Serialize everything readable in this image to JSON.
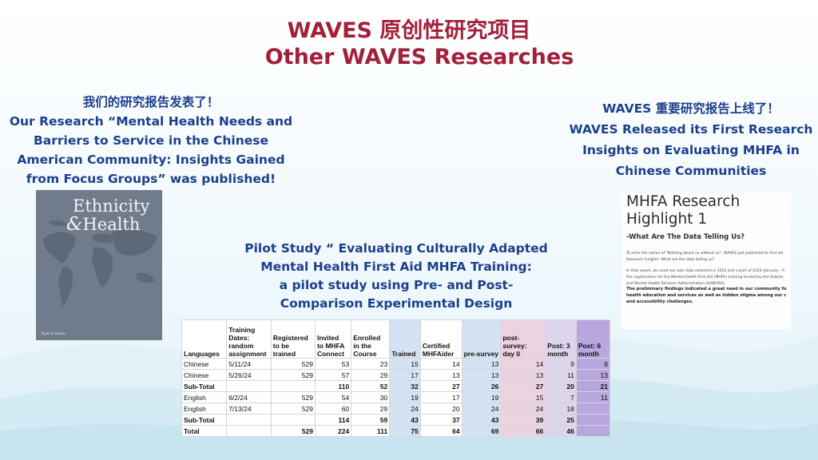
{
  "header": {
    "title_line1": "WAVES 原创性研究项目",
    "title_line2": "Other WAVES  Researches"
  },
  "left": {
    "lines": [
      "我们的研究报告发表了！",
      "Our Research “Mental Health Needs and",
      "Barriers to Service in the Chinese",
      "American Community: Insights Gained",
      "from Focus Groups” was published!"
    ],
    "journal": {
      "title_line1": "Ethnicity",
      "amp": "&",
      "title_line2": "Health",
      "publisher": "Taylor & Francis"
    }
  },
  "right": {
    "lines": [
      "WAVES 重要研究报告上线了！",
      "WAVES Released its First Research",
      "Insights on Evaluating MHFA in",
      "Chinese Communities"
    ],
    "highlight": {
      "title_line1": "MHFA Research",
      "title_line2": "Highlight 1",
      "subtitle": "-What Are The Data Telling Us?",
      "para1": [
        "To echo the notion of \"Nothing about us without us\", WAVES just published its first da",
        "Research Insights: What are the data telling us?"
      ],
      "para2": [
        "In that report, we used our own data collected in 2023 and a part of 2024 (January - A",
        "the registrations for the Mental Health First Aid (MHFA) training funded by the Substa",
        "and Mental Health Services Administration (SAMHSA)."
      ],
      "para3": [
        "The preliminary findings indicated a great need in our community fo",
        "health education and services as well as hidden stigma among our c",
        "and accessibility challenges."
      ]
    }
  },
  "middle": {
    "lines": [
      "Pilot Study “ Evaluating Culturally Adapted",
      "Mental Health First Aid MHFA Training:",
      "a pilot study using Pre- and Post-",
      "Comparison Experimental Design"
    ]
  },
  "table": {
    "headers": [
      [
        "Languages"
      ],
      [
        "Training",
        "Dates:",
        "random",
        "assignment"
      ],
      [
        "Registered",
        "to be",
        "trained"
      ],
      [
        "Invited",
        "to MHFA",
        "Connect"
      ],
      [
        "Enrolled",
        "in the",
        "Course"
      ],
      [
        "Trained"
      ],
      [
        "Certified",
        "MHFAider"
      ],
      [
        "pre-survey"
      ],
      [
        "post-survey:",
        "day 0"
      ],
      [
        "Post: 3",
        "month"
      ],
      [
        "Post: 6",
        "month"
      ]
    ],
    "rows": [
      {
        "bold": false,
        "cells": [
          "Chinese",
          "5/11/24",
          "529",
          "53",
          "23",
          "15",
          "14",
          "13",
          "14",
          "9",
          "8"
        ]
      },
      {
        "bold": false,
        "cells": [
          "Chinese",
          "5/26/24",
          "529",
          "57",
          "29",
          "17",
          "13",
          "13",
          "13",
          "11",
          "13"
        ]
      },
      {
        "bold": true,
        "cells": [
          "Sub-Total",
          "",
          "",
          "110",
          "52",
          "32",
          "27",
          "26",
          "27",
          "20",
          "21"
        ]
      },
      {
        "bold": false,
        "cells": [
          "English",
          "6/2/24",
          "529",
          "54",
          "30",
          "19",
          "17",
          "19",
          "15",
          "7",
          "11"
        ]
      },
      {
        "bold": false,
        "cells": [
          "English",
          "7/13/24",
          "529",
          "60",
          "29",
          "24",
          "20",
          "24",
          "24",
          "18",
          ""
        ]
      },
      {
        "bold": true,
        "cells": [
          "Sub-Total",
          "",
          "",
          "114",
          "59",
          "43",
          "37",
          "43",
          "39",
          "25",
          ""
        ]
      },
      {
        "bold": true,
        "cells": [
          "Total",
          "",
          "529",
          "224",
          "111",
          "75",
          "64",
          "69",
          "66",
          "46",
          ""
        ]
      }
    ]
  }
}
